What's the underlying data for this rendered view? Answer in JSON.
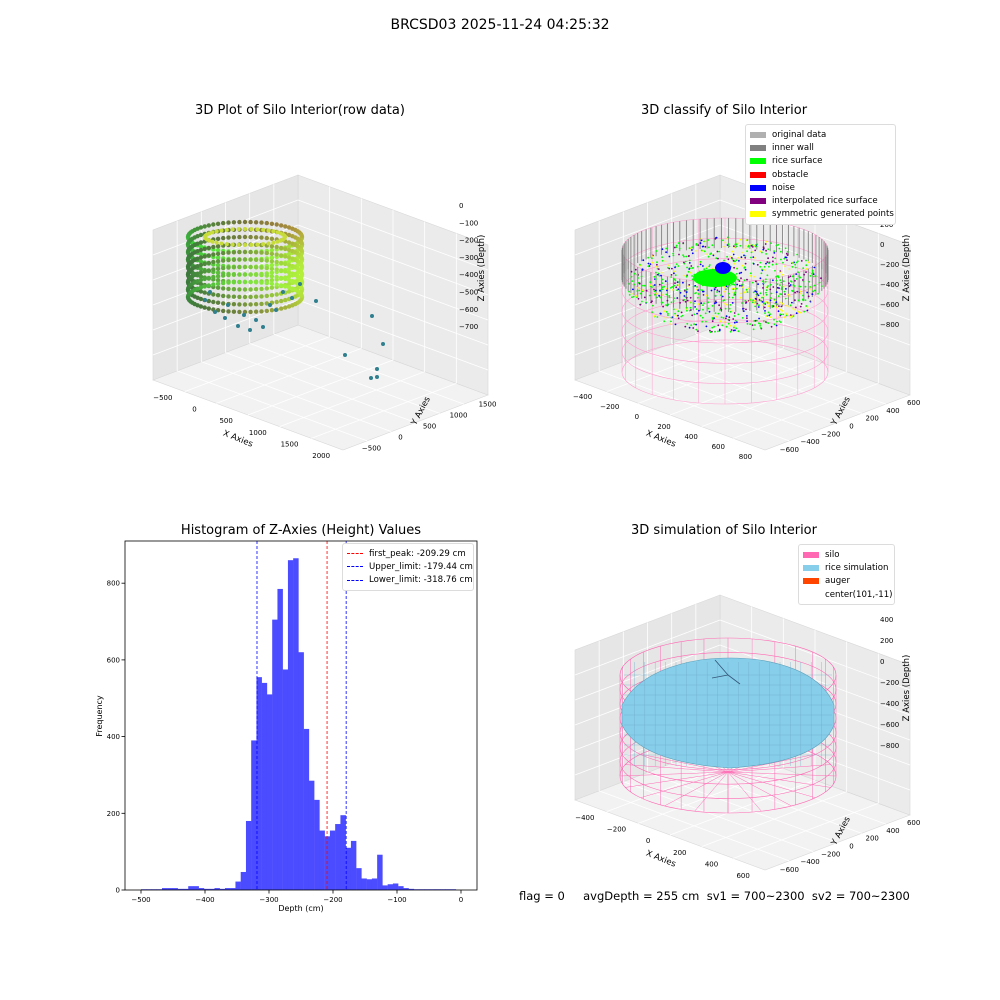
{
  "figure": {
    "title": "BRCSD03 2025-11-24 04:25:32"
  },
  "plot_raw": {
    "title": "3D Plot of Silo Interior(row data)",
    "xlabel": "X Axies",
    "ylabel": "Y Axies",
    "zlabel": "Z Axies (Depth)",
    "x_ticks": [
      "−500",
      "0",
      "500",
      "1000",
      "1500",
      "2000"
    ],
    "y_ticks": [
      "−500",
      "0",
      "500",
      "1000",
      "1500"
    ],
    "z_ticks": [
      "0",
      "−100",
      "−200",
      "−300",
      "−400",
      "−500",
      "−600",
      "−700"
    ]
  },
  "plot_classify": {
    "title": "3D classify of Silo Interior",
    "xlabel": "X Axies",
    "ylabel": "Y Axies",
    "zlabel": "Z Axies (Depth)",
    "x_ticks": [
      "−400",
      "−200",
      "0",
      "200",
      "400",
      "600",
      "800"
    ],
    "y_ticks": [
      "−600",
      "−400",
      "−200",
      "0",
      "200",
      "400",
      "600"
    ],
    "z_ticks": [
      "200",
      "0",
      "−200",
      "−400",
      "−600",
      "−800"
    ],
    "legend": [
      {
        "label": "original data",
        "color": "#b0b0b0"
      },
      {
        "label": "inner wall",
        "color": "#808080"
      },
      {
        "label": "rice surface",
        "color": "#00ff00"
      },
      {
        "label": "obstacle",
        "color": "#ff0000"
      },
      {
        "label": "noise",
        "color": "#0000ff"
      },
      {
        "label": "interpolated rice surface",
        "color": "#800080"
      },
      {
        "label": "symmetric generated points",
        "color": "#ffff00"
      }
    ]
  },
  "plot_sim": {
    "title": "3D simulation of Silo Interior",
    "xlabel": "X Axies",
    "ylabel": "Y Axies",
    "zlabel": "Z Axies (Depth)",
    "x_ticks": [
      "−400",
      "−200",
      "0",
      "200",
      "400",
      "600"
    ],
    "y_ticks": [
      "−600",
      "−400",
      "−200",
      "0",
      "200",
      "400",
      "600"
    ],
    "z_ticks": [
      "400",
      "200",
      "0",
      "−200",
      "−400",
      "−600",
      "−800"
    ],
    "legend": [
      {
        "label": "silo",
        "color": "#ff69b4"
      },
      {
        "label": "rice simulation",
        "color": "#87ceeb"
      },
      {
        "label": "auger",
        "color": "#ff4500"
      },
      {
        "label": "center(101,-11)",
        "color": ""
      }
    ]
  },
  "chart_data": {
    "type": "bar",
    "title": "Histogram of Z-Axies (Height) Values",
    "xlabel": "Depth (cm)",
    "ylabel": "Frequency",
    "xlim": [
      -525,
      25
    ],
    "ylim": [
      0,
      910
    ],
    "x_ticks": [
      -500,
      -400,
      -300,
      -200,
      -100,
      0
    ],
    "y_ticks": [
      0,
      200,
      400,
      600,
      800
    ],
    "bar_color": "#4b4bff",
    "bin_width": 8.2,
    "bin_starts": [
      -500.0,
      -491.8,
      -483.6,
      -475.4,
      -467.2,
      -459.0,
      -450.8,
      -442.6,
      -434.4,
      -426.2,
      -418.0,
      -409.8,
      -401.6,
      -393.4,
      -385.2,
      -377.0,
      -368.8,
      -360.6,
      -352.4,
      -344.2,
      -336.0,
      -327.8,
      -319.6,
      -311.4,
      -303.2,
      -295.0,
      -286.8,
      -278.6,
      -270.4,
      -262.2,
      -254.0,
      -245.8,
      -237.6,
      -229.4,
      -221.2,
      -213.0,
      -204.8,
      -196.6,
      -188.4,
      -180.2,
      -172.0,
      -163.8,
      -155.6,
      -147.4,
      -139.2,
      -131.0,
      -122.8,
      -114.6,
      -106.4,
      -98.2,
      -90.0,
      -81.8,
      -73.6,
      -65.4,
      -57.2,
      -49.0,
      -40.8,
      -32.6,
      -24.4,
      -16.2
    ],
    "counts": [
      2,
      2,
      2,
      2,
      5,
      5,
      5,
      3,
      3,
      10,
      10,
      5,
      3,
      3,
      5,
      3,
      5,
      5,
      22,
      47,
      180,
      390,
      555,
      540,
      510,
      705,
      785,
      575,
      860,
      865,
      620,
      420,
      285,
      235,
      155,
      140,
      155,
      172,
      195,
      110,
      128,
      57,
      30,
      28,
      30,
      92,
      12,
      15,
      17,
      10,
      5,
      3,
      2,
      2,
      2,
      2,
      2,
      2,
      2,
      2
    ],
    "vlines": [
      {
        "label": "first_peak: -209.29 cm",
        "x": -209.29,
        "color": "#ff0000"
      },
      {
        "label": "Upper_limit: -179.44 cm",
        "x": -179.44,
        "color": "#0000ff"
      },
      {
        "label": "Lower_limit: -318.76 cm",
        "x": -318.76,
        "color": "#0000ff"
      }
    ]
  },
  "footer": {
    "text": "flag = 0     avgDepth = 255 cm  sv1 = 700~2300  sv2 = 700~2300"
  }
}
